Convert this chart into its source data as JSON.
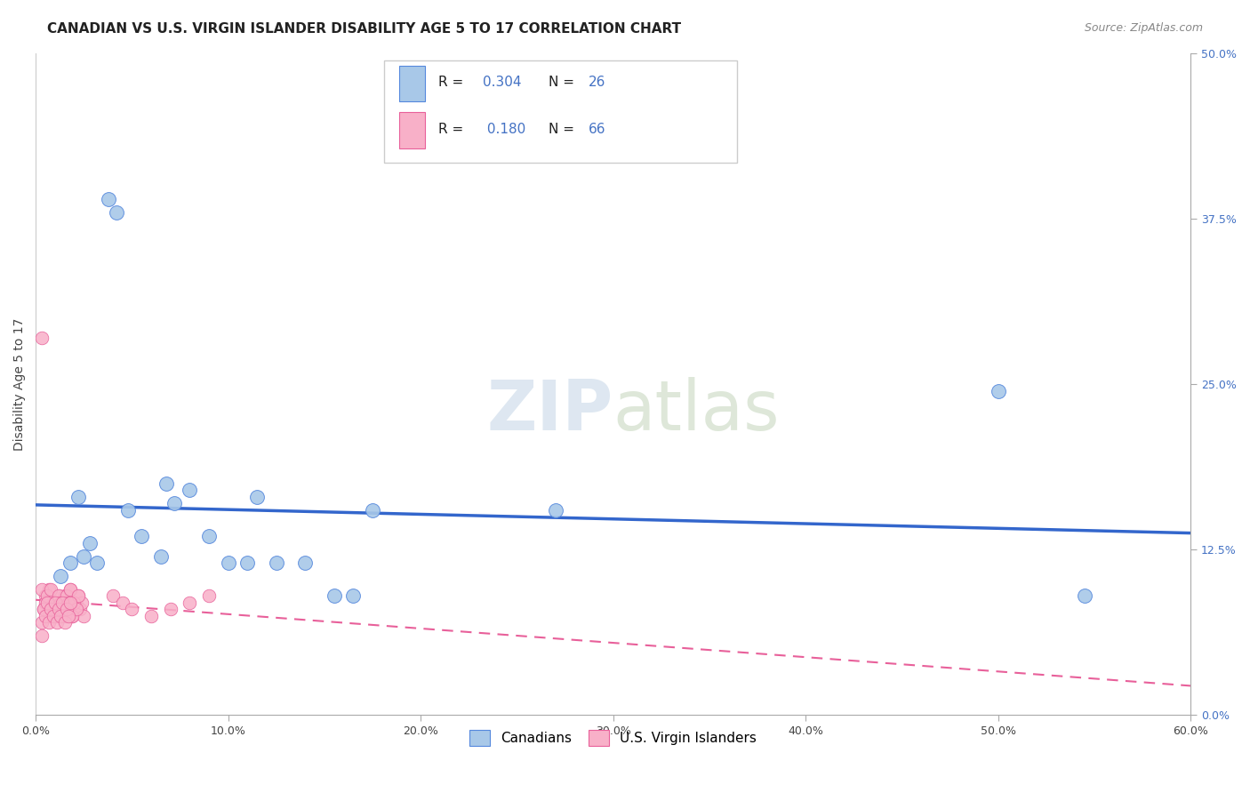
{
  "title": "CANADIAN VS U.S. VIRGIN ISLANDER DISABILITY AGE 5 TO 17 CORRELATION CHART",
  "source": "Source: ZipAtlas.com",
  "ylabel": "Disability Age 5 to 17",
  "xlim": [
    0.0,
    0.6
  ],
  "ylim": [
    0.0,
    0.5
  ],
  "xticks": [
    0.0,
    0.1,
    0.2,
    0.3,
    0.4,
    0.5,
    0.6
  ],
  "xtick_labels": [
    "0.0%",
    "10.0%",
    "20.0%",
    "30.0%",
    "40.0%",
    "50.0%",
    "60.0%"
  ],
  "yticks": [
    0.0,
    0.125,
    0.25,
    0.375,
    0.5
  ],
  "ytick_labels_right": [
    "0.0%",
    "12.5%",
    "25.0%",
    "37.5%",
    "50.0%"
  ],
  "canadian_R": 0.304,
  "canadian_N": 26,
  "virgin_R": 0.18,
  "virgin_N": 66,
  "canadian_color": "#a8c8e8",
  "canadian_line_color": "#3366cc",
  "canadian_edge_color": "#5588dd",
  "virgin_color": "#f8b0c8",
  "virgin_line_color": "#e8609a",
  "virgin_edge_color": "#e8609a",
  "legend_blue_text": "#4472c4",
  "canadian_x": [
    0.013,
    0.018,
    0.022,
    0.025,
    0.028,
    0.032,
    0.038,
    0.042,
    0.048,
    0.055,
    0.065,
    0.068,
    0.072,
    0.08,
    0.09,
    0.1,
    0.11,
    0.115,
    0.125,
    0.14,
    0.155,
    0.165,
    0.175,
    0.27,
    0.5,
    0.545
  ],
  "canadian_y": [
    0.105,
    0.115,
    0.165,
    0.12,
    0.13,
    0.115,
    0.39,
    0.38,
    0.155,
    0.135,
    0.12,
    0.175,
    0.16,
    0.17,
    0.135,
    0.115,
    0.115,
    0.165,
    0.115,
    0.115,
    0.09,
    0.09,
    0.155,
    0.155,
    0.245,
    0.09
  ],
  "virgin_x": [
    0.003,
    0.005,
    0.006,
    0.007,
    0.008,
    0.009,
    0.01,
    0.011,
    0.012,
    0.013,
    0.014,
    0.015,
    0.016,
    0.017,
    0.018,
    0.019,
    0.02,
    0.021,
    0.022,
    0.023,
    0.024,
    0.025,
    0.003,
    0.004,
    0.005,
    0.006,
    0.007,
    0.008,
    0.009,
    0.01,
    0.011,
    0.012,
    0.013,
    0.014,
    0.015,
    0.016,
    0.017,
    0.018,
    0.019,
    0.02,
    0.021,
    0.022,
    0.003,
    0.004,
    0.005,
    0.006,
    0.007,
    0.008,
    0.009,
    0.01,
    0.011,
    0.012,
    0.013,
    0.014,
    0.015,
    0.016,
    0.017,
    0.018,
    0.04,
    0.045,
    0.05,
    0.06,
    0.07,
    0.08,
    0.09,
    0.003
  ],
  "virgin_y": [
    0.285,
    0.09,
    0.085,
    0.095,
    0.08,
    0.085,
    0.075,
    0.08,
    0.09,
    0.085,
    0.075,
    0.09,
    0.08,
    0.085,
    0.095,
    0.075,
    0.085,
    0.08,
    0.09,
    0.08,
    0.085,
    0.075,
    0.095,
    0.08,
    0.085,
    0.09,
    0.075,
    0.095,
    0.08,
    0.085,
    0.075,
    0.09,
    0.085,
    0.08,
    0.075,
    0.09,
    0.085,
    0.095,
    0.075,
    0.085,
    0.08,
    0.09,
    0.07,
    0.08,
    0.075,
    0.085,
    0.07,
    0.08,
    0.075,
    0.085,
    0.07,
    0.08,
    0.075,
    0.085,
    0.07,
    0.08,
    0.075,
    0.085,
    0.09,
    0.085,
    0.08,
    0.075,
    0.08,
    0.085,
    0.09,
    0.06
  ]
}
